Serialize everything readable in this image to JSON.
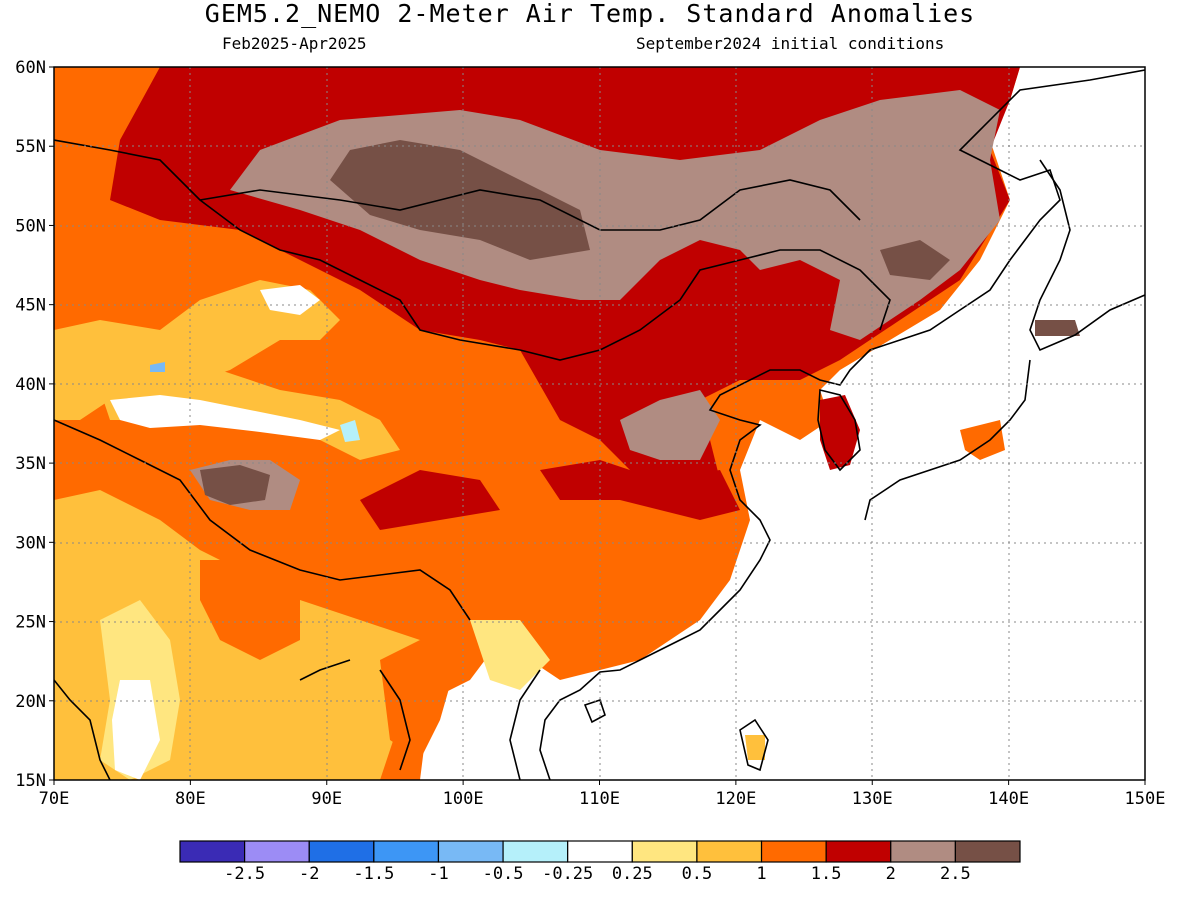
{
  "header": {
    "title": "GEM5.2_NEMO 2-Meter Air Temp. Standard Anomalies",
    "period": "Feb2025-Apr2025",
    "initial_conditions": "September2024 initial conditions"
  },
  "axes": {
    "lon_ticks": [
      "70E",
      "80E",
      "90E",
      "100E",
      "110E",
      "120E",
      "130E",
      "140E",
      "150E"
    ],
    "lat_ticks": [
      "15N",
      "20N",
      "25N",
      "30N",
      "35N",
      "40N",
      "45N",
      "50N",
      "55N",
      "60N"
    ]
  },
  "legend": {
    "colors": [
      "#3a2bb5",
      "#9c8cf5",
      "#1f6fe6",
      "#3d96f5",
      "#78b9f5",
      "#b5f0fa",
      "#ffffff",
      "#ffe680",
      "#ffc03c",
      "#ff6a00",
      "#c00000",
      "#b08c82",
      "#765046"
    ],
    "labels": [
      "-2.5",
      "-2",
      "-1.5",
      "-1",
      "-0.5",
      "-0.25",
      "0.25",
      "0.5",
      "1",
      "1.5",
      "2",
      "2.5"
    ]
  }
}
